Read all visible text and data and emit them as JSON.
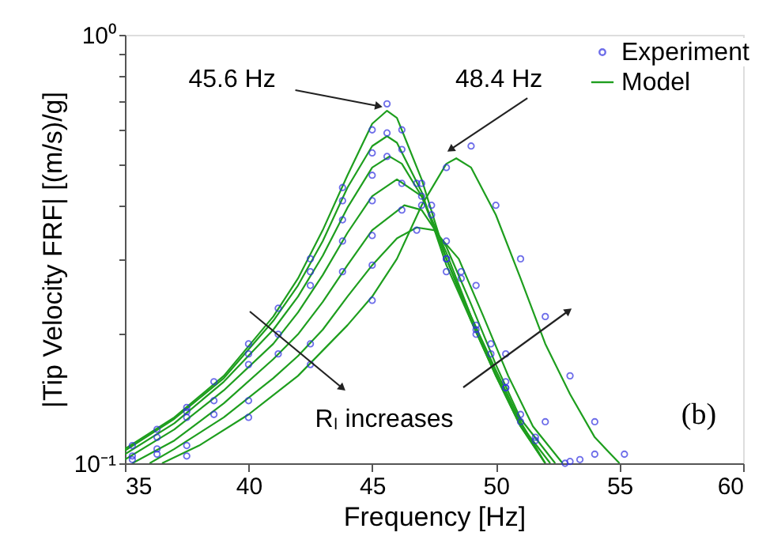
{
  "chart_data": {
    "type": "line",
    "xlabel": "Frequency [Hz]",
    "ylabel": "|Tip Velocity FRF| [(m/s)/g]",
    "xlim": [
      35,
      60
    ],
    "xticks": [
      35,
      40,
      45,
      50,
      55,
      60
    ],
    "ylim": [
      0.1,
      1
    ],
    "log": "y",
    "yticks": [
      {
        "value": 0.1,
        "label": "10⁻¹"
      },
      {
        "value": 0.2,
        "label": null
      },
      {
        "value": 0.3,
        "label": null
      },
      {
        "value": 0.4,
        "label": null
      },
      {
        "value": 0.5,
        "label": null
      },
      {
        "value": 0.6,
        "label": null
      },
      {
        "value": 0.7,
        "label": null
      },
      {
        "value": 0.8,
        "label": null
      },
      {
        "value": 0.9,
        "label": null
      },
      {
        "value": 1,
        "label": "10⁰"
      }
    ],
    "grid": false,
    "legend": "top right",
    "annotations": [
      {
        "text": "45.6 Hz",
        "x": 45.6,
        "y": 0.665
      },
      {
        "text": "48.4 Hz",
        "x": 48.4,
        "y": 0.515
      },
      "Rₗ increases",
      "(b)"
    ],
    "series": [
      {
        "name": "Experiment",
        "type": "scatter",
        "marker": "circle",
        "color": "#3030e0",
        "x": [
          35.3,
          36.3,
          37.5,
          38.6,
          40,
          41.2,
          42.5,
          43.8,
          45,
          45.6,
          46.2,
          47,
          48,
          49.2,
          50.4,
          51.6,
          35.3,
          36.3,
          37.5,
          40,
          42.5,
          43.8,
          45,
          45.6,
          46.2,
          47,
          48,
          49.2,
          50.4,
          51.6,
          35.3,
          37.5,
          40,
          42.5,
          43.8,
          45,
          45.6,
          46.8,
          48,
          49.2,
          50.4,
          52.8,
          36.3,
          38.6,
          41.2,
          43.8,
          45,
          46.2,
          47.4,
          48.6,
          49.8,
          51,
          53,
          36.3,
          38.6,
          41.2,
          43.8,
          45,
          46.2,
          47.4,
          48.6,
          49.8,
          51,
          53.4,
          37.5,
          40,
          42.5,
          45,
          46.8,
          48,
          49.2,
          50.4,
          52,
          54,
          37.5,
          40,
          42.5,
          45,
          47,
          48,
          49,
          50,
          51,
          52,
          53,
          54,
          55.2
        ],
        "values": [
          0.11,
          0.12,
          0.135,
          0.155,
          0.19,
          0.23,
          0.3,
          0.44,
          0.6,
          0.69,
          0.6,
          0.45,
          0.3,
          0.2,
          0.15,
          0.115,
          0.104,
          0.115,
          0.132,
          0.18,
          0.28,
          0.41,
          0.53,
          0.59,
          0.54,
          0.42,
          0.28,
          0.205,
          0.15,
          0.113,
          0.102,
          0.128,
          0.17,
          0.26,
          0.37,
          0.47,
          0.52,
          0.45,
          0.3,
          0.21,
          0.155,
          0.1,
          0.108,
          0.14,
          0.2,
          0.33,
          0.41,
          0.45,
          0.4,
          0.27,
          0.18,
          0.125,
          0.101,
          0.105,
          0.13,
          0.18,
          0.28,
          0.34,
          0.39,
          0.38,
          0.28,
          0.19,
          0.13,
          0.102,
          0.11,
          0.14,
          0.19,
          0.29,
          0.35,
          0.33,
          0.26,
          0.18,
          0.125,
          0.105,
          0.104,
          0.128,
          0.17,
          0.24,
          0.4,
          0.49,
          0.55,
          0.4,
          0.3,
          0.22,
          0.16,
          0.125,
          0.105
        ]
      },
      {
        "name": "Model",
        "line_style": "solid",
        "color": "#1e9e1e",
        "x": [
          35,
          37,
          39,
          41,
          42,
          43,
          44,
          45,
          45.6,
          46,
          47,
          48,
          49,
          50,
          51,
          52
        ],
        "values": [
          0.108,
          0.128,
          0.16,
          0.22,
          0.27,
          0.35,
          0.47,
          0.62,
          0.665,
          0.64,
          0.46,
          0.3,
          0.22,
          0.165,
          0.125,
          0.1
        ]
      },
      {
        "line_style": "solid",
        "color": "#1e9e1e",
        "x": [
          35,
          37,
          39,
          41,
          42,
          43,
          44,
          45,
          45.6,
          46,
          47,
          48,
          49,
          50,
          51,
          52
        ],
        "values": [
          0.107,
          0.127,
          0.158,
          0.215,
          0.26,
          0.33,
          0.44,
          0.55,
          0.58,
          0.56,
          0.43,
          0.29,
          0.215,
          0.16,
          0.122,
          0.1
        ]
      },
      {
        "line_style": "solid",
        "color": "#1e9e1e",
        "x": [
          35,
          37,
          39,
          41,
          42,
          43,
          44,
          45,
          45.7,
          46.2,
          47,
          48,
          49,
          50,
          51,
          52
        ],
        "values": [
          0.105,
          0.124,
          0.155,
          0.205,
          0.245,
          0.305,
          0.395,
          0.49,
          0.52,
          0.5,
          0.42,
          0.3,
          0.215,
          0.16,
          0.122,
          0.1
        ]
      },
      {
        "line_style": "solid",
        "color": "#1e9e1e",
        "x": [
          35,
          37,
          39,
          41,
          42,
          43,
          44,
          45,
          46,
          47,
          48,
          49,
          50,
          51,
          52.2
        ],
        "values": [
          0.102,
          0.12,
          0.148,
          0.19,
          0.225,
          0.275,
          0.345,
          0.42,
          0.46,
          0.42,
          0.31,
          0.22,
          0.162,
          0.123,
          0.1
        ]
      },
      {
        "line_style": "solid",
        "color": "#1e9e1e",
        "x": [
          35.3,
          37,
          39,
          41,
          42,
          43,
          44,
          45,
          46.3,
          47,
          48,
          49,
          50,
          51,
          52.4
        ],
        "values": [
          0.1,
          0.113,
          0.138,
          0.175,
          0.2,
          0.238,
          0.29,
          0.35,
          0.4,
          0.39,
          0.32,
          0.235,
          0.17,
          0.127,
          0.1
        ]
      },
      {
        "line_style": "solid",
        "color": "#1e9e1e",
        "x": [
          36,
          37,
          39,
          41,
          42,
          43,
          44,
          45,
          46,
          46.8,
          47.5,
          48.5,
          49.5,
          50.5,
          51.5,
          52.7
        ],
        "values": [
          0.1,
          0.108,
          0.128,
          0.158,
          0.178,
          0.205,
          0.245,
          0.29,
          0.335,
          0.355,
          0.35,
          0.3,
          0.22,
          0.16,
          0.122,
          0.1
        ]
      },
      {
        "line_style": "solid",
        "color": "#1e9e1e",
        "x": [
          36.5,
          38,
          40,
          42,
          44,
          45,
          46,
          47,
          48,
          48.4,
          49,
          50,
          51,
          52,
          53,
          54,
          55
        ],
        "values": [
          0.1,
          0.11,
          0.13,
          0.16,
          0.21,
          0.245,
          0.3,
          0.4,
          0.5,
          0.515,
          0.49,
          0.38,
          0.27,
          0.19,
          0.145,
          0.115,
          0.1
        ]
      }
    ]
  }
}
